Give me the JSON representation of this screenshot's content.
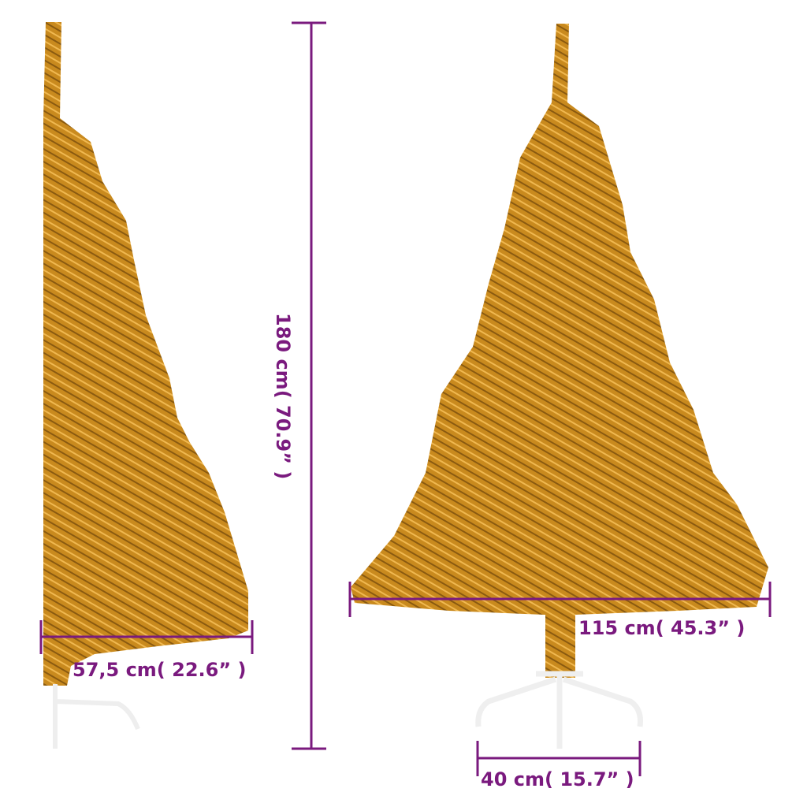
{
  "colors": {
    "dimension": "#7a1a7e",
    "tree": "#c98a1e",
    "tree_dark": "#8a5a10",
    "stand": "#f4f4f4"
  },
  "dimensions": {
    "height": "180 cm( 70.9” )",
    "half_tree_depth": "57,5 cm( 22.6” )",
    "tree_width": "115 cm( 45.3” )",
    "stand_width": "40 cm( 15.7” )"
  }
}
